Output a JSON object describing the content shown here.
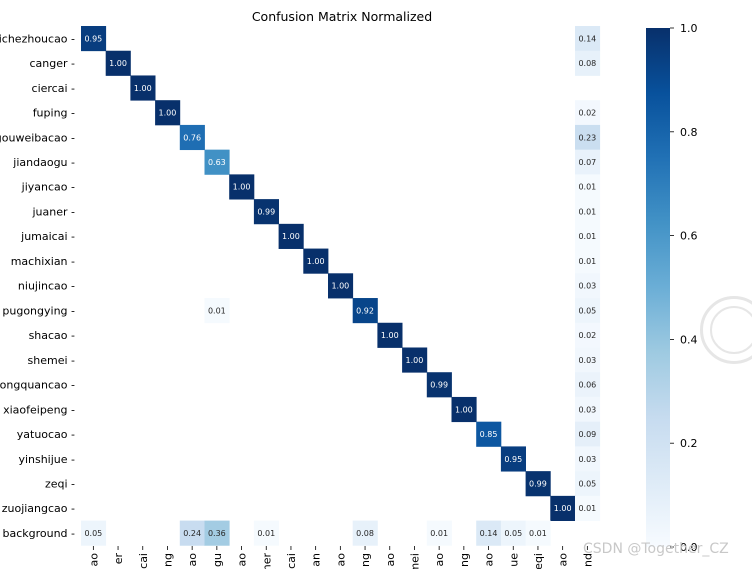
{
  "chart_data": {
    "type": "heatmap",
    "title": "Confusion Matrix Normalized",
    "row_labels": [
      "aichezhoucao",
      "canger",
      "ciercai",
      "fuping",
      "gouweibacao",
      "jiandaogu",
      "jiyancao",
      "juaner",
      "jumaicai",
      "machixian",
      "niujincao",
      "pugongying",
      "shacao",
      "shemei",
      "tongquancao",
      "xiaofeipeng",
      "yatuocao",
      "yinshijue",
      "zeqi",
      "zuojiangcao",
      "background"
    ],
    "col_labels": [
      "ao",
      "er",
      "cai",
      "ng",
      "ao",
      "gu",
      "ao",
      "ner",
      "cai",
      "an",
      "ao",
      "ng",
      "ao",
      "mei",
      "ao",
      "ng",
      "ao",
      "ue",
      "eqi",
      "ao",
      "nd"
    ],
    "cells": [
      [
        0,
        0,
        0.95
      ],
      [
        0,
        20,
        0.14
      ],
      [
        1,
        1,
        1.0
      ],
      [
        1,
        20,
        0.08
      ],
      [
        2,
        2,
        1.0
      ],
      [
        3,
        3,
        1.0
      ],
      [
        3,
        20,
        0.02
      ],
      [
        4,
        4,
        0.76
      ],
      [
        4,
        20,
        0.23
      ],
      [
        5,
        5,
        0.63
      ],
      [
        5,
        20,
        0.07
      ],
      [
        6,
        6,
        1.0
      ],
      [
        6,
        20,
        0.01
      ],
      [
        7,
        7,
        0.99
      ],
      [
        7,
        20,
        0.01
      ],
      [
        8,
        8,
        1.0
      ],
      [
        8,
        20,
        0.01
      ],
      [
        9,
        9,
        1.0
      ],
      [
        9,
        20,
        0.01
      ],
      [
        10,
        10,
        1.0
      ],
      [
        10,
        20,
        0.03
      ],
      [
        11,
        5,
        0.01
      ],
      [
        11,
        11,
        0.92
      ],
      [
        11,
        20,
        0.05
      ],
      [
        12,
        12,
        1.0
      ],
      [
        12,
        20,
        0.02
      ],
      [
        13,
        13,
        1.0
      ],
      [
        13,
        20,
        0.03
      ],
      [
        14,
        14,
        0.99
      ],
      [
        14,
        20,
        0.06
      ],
      [
        15,
        15,
        1.0
      ],
      [
        15,
        20,
        0.03
      ],
      [
        16,
        16,
        0.85
      ],
      [
        16,
        20,
        0.09
      ],
      [
        17,
        17,
        0.95
      ],
      [
        17,
        20,
        0.03
      ],
      [
        18,
        18,
        0.99
      ],
      [
        18,
        20,
        0.05
      ],
      [
        19,
        19,
        1.0
      ],
      [
        19,
        20,
        0.01
      ],
      [
        20,
        0,
        0.05
      ],
      [
        20,
        4,
        0.24
      ],
      [
        20,
        5,
        0.36
      ],
      [
        20,
        7,
        0.01
      ],
      [
        20,
        11,
        0.08
      ],
      [
        20,
        14,
        0.01
      ],
      [
        20,
        16,
        0.14
      ],
      [
        20,
        17,
        0.05
      ],
      [
        20,
        18,
        0.01
      ]
    ],
    "colorbar": {
      "min": 0.0,
      "max": 1.0,
      "ticks": [
        "0.0",
        "0.2",
        "0.4",
        "0.6",
        "0.8",
        "1.0"
      ],
      "colormap": "Blues"
    }
  },
  "watermark": "CSDN @Together_CZ"
}
